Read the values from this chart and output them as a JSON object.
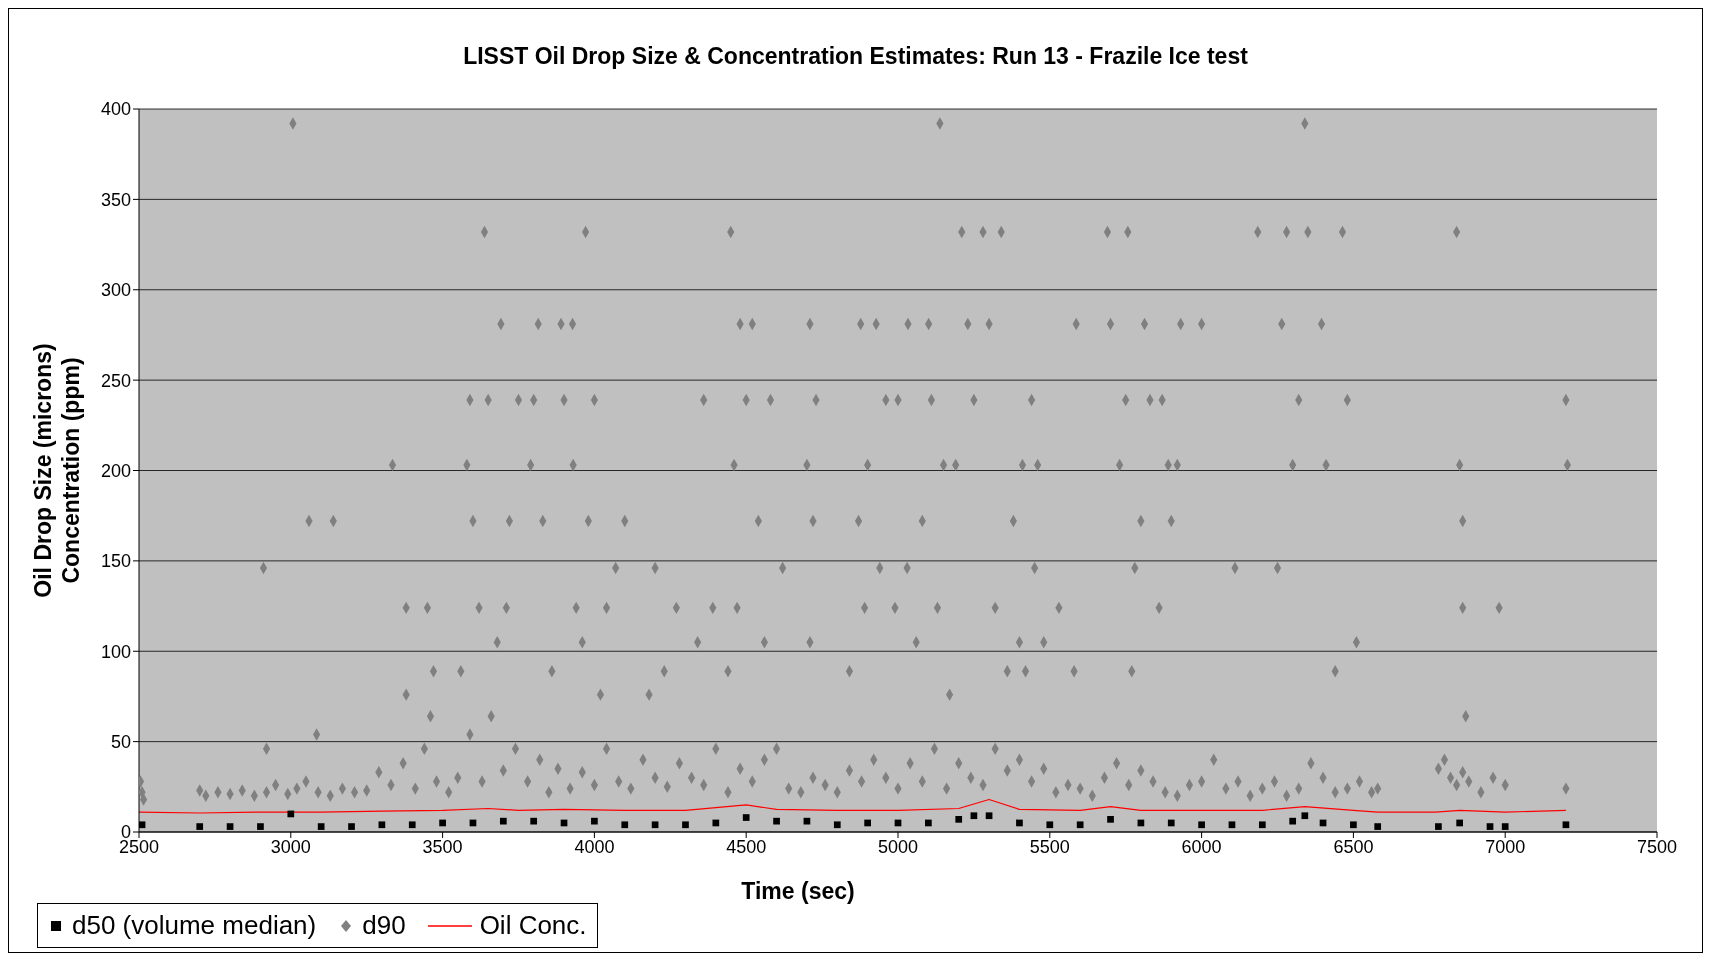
{
  "chart_data": {
    "type": "scatter",
    "title": "LISST  Oil Drop Size & Concentration Estimates: Run 13 - Frazile Ice test",
    "xlabel": "Time (sec)",
    "ylabel": "Oil Drop Size (microns)\nConcentration (ppm)",
    "xlim": [
      2500,
      7500
    ],
    "xticks": [
      2500,
      3000,
      3500,
      4000,
      4500,
      5000,
      5500,
      6000,
      6500,
      7000,
      7500
    ],
    "ylim": [
      0,
      400
    ],
    "yticks": [
      0,
      50,
      100,
      150,
      200,
      250,
      300,
      350,
      400
    ],
    "grid": "y",
    "legend": "bottom left",
    "series": [
      {
        "name": "d50 (volume median)",
        "marker": "square",
        "color": "#000000",
        "x": [
          2510,
          2700,
          2800,
          2900,
          3000,
          3100,
          3200,
          3300,
          3400,
          3500,
          3600,
          3700,
          3800,
          3900,
          4000,
          4100,
          4200,
          4300,
          4400,
          4500,
          4600,
          4700,
          4800,
          4900,
          5000,
          5100,
          5200,
          5250,
          5300,
          5400,
          5500,
          5600,
          5700,
          5800,
          5900,
          6000,
          6100,
          6200,
          6300,
          6340,
          6400,
          6500,
          6580,
          6780,
          6850,
          6950,
          7000,
          7200
        ],
        "values": [
          4,
          3,
          3,
          3,
          10,
          3,
          3,
          4,
          4,
          5,
          5,
          6,
          6,
          5,
          6,
          4,
          4,
          4,
          5,
          8,
          6,
          6,
          4,
          5,
          5,
          5,
          7,
          9,
          9,
          5,
          4,
          4,
          7,
          5,
          5,
          4,
          4,
          4,
          6,
          9,
          5,
          4,
          3,
          3,
          5,
          3,
          3,
          4
        ]
      },
      {
        "name": "d90",
        "marker": "diamond",
        "color": "#808080",
        "x": [
          2505,
          2510,
          2515,
          2700,
          2720,
          2760,
          2800,
          2840,
          2880,
          2920,
          2950,
          2990,
          3020,
          3050,
          3090,
          3130,
          3170,
          3210,
          3250,
          3290,
          3330,
          3370,
          3410,
          3440,
          3480,
          3520,
          3550,
          3590,
          3630,
          3660,
          3700,
          3740,
          3780,
          3820,
          3850,
          3880,
          3920,
          3960,
          4000,
          4040,
          4080,
          4120,
          4160,
          4200,
          4240,
          4280,
          4320,
          4360,
          4400,
          4440,
          4480,
          4520,
          4560,
          4600,
          4640,
          4680,
          4720,
          4760,
          4800,
          4840,
          4880,
          4920,
          4960,
          5000,
          5040,
          5080,
          5120,
          5160,
          5200,
          5240,
          5280,
          5320,
          5360,
          5400,
          5440,
          5480,
          5520,
          5560,
          5600,
          5640,
          5680,
          5720,
          5760,
          5800,
          5840,
          5880,
          5920,
          5960,
          6000,
          6040,
          6080,
          6120,
          6160,
          6200,
          6240,
          6280,
          6320,
          6360,
          6400,
          6440,
          6480,
          6520,
          6560,
          6580,
          6780,
          6800,
          6820,
          6840,
          6860,
          6880,
          6920,
          6960,
          7000,
          7200,
          2910,
          2920,
          3007,
          3060,
          3085,
          3140,
          3335,
          3380,
          3380,
          3450,
          3470,
          3460,
          3560,
          3580,
          3600,
          3620,
          3590,
          3638,
          3650,
          3680,
          3692,
          3720,
          3710,
          3750,
          3790,
          3800,
          3815,
          3830,
          3860,
          3890,
          3900,
          3928,
          3930,
          3940,
          3960,
          3971,
          3980,
          4000,
          4020,
          4040,
          4070,
          4100,
          4180,
          4200,
          4230,
          4270,
          4340,
          4360,
          4390,
          4440,
          4449,
          4460,
          4470,
          4480,
          4500,
          4520,
          4540,
          4560,
          4580,
          4620,
          4700,
          4710,
          4720,
          4710,
          4730,
          4840,
          4870,
          4877,
          4890,
          4900,
          4928,
          4940,
          4960,
          4990,
          5000,
          5030,
          5033,
          5060,
          5080,
          5101,
          5110,
          5130,
          5138,
          5150,
          5170,
          5190,
          5210,
          5230,
          5250,
          5280,
          5300,
          5320,
          5340,
          5360,
          5380,
          5400,
          5410,
          5420,
          5440,
          5450,
          5460,
          5480,
          5530,
          5587,
          5580,
          5690,
          5700,
          5730,
          5750,
          5757,
          5770,
          5780,
          5800,
          5812,
          5830,
          5860,
          5870,
          5890,
          5900,
          5920,
          5931,
          6000,
          6110,
          6185,
          6250,
          6264,
          6280,
          6300,
          6320,
          6340,
          6350,
          6395,
          6410,
          6440,
          6464,
          6480,
          6510,
          6840,
          6850,
          6860,
          6860,
          6870,
          6980,
          7200,
          7205
        ],
        "values": [
          28,
          22,
          18,
          23,
          20,
          22,
          21,
          23,
          20,
          22,
          26,
          21,
          24,
          28,
          22,
          20,
          24,
          22,
          23,
          33,
          26,
          38,
          24,
          46,
          28,
          22,
          30,
          54,
          28,
          64,
          34,
          46,
          28,
          40,
          22,
          35,
          24,
          33,
          26,
          46,
          28,
          24,
          40,
          30,
          25,
          38,
          30,
          26,
          46,
          22,
          35,
          28,
          40,
          46,
          24,
          22,
          30,
          26,
          22,
          34,
          28,
          40,
          30,
          24,
          38,
          28,
          46,
          24,
          38,
          30,
          26,
          46,
          34,
          40,
          28,
          35,
          22,
          26,
          24,
          20,
          30,
          38,
          26,
          34,
          28,
          22,
          20,
          26,
          28,
          40,
          24,
          28,
          20,
          24,
          28,
          20,
          24,
          38,
          30,
          22,
          24,
          28,
          22,
          24,
          35,
          40,
          30,
          26,
          33,
          28,
          22,
          30,
          26,
          24,
          146,
          46,
          392,
          172,
          54,
          172,
          203,
          124,
          76,
          124,
          89,
          64,
          89,
          203,
          172,
          124,
          239,
          332,
          239,
          105,
          281,
          172,
          124,
          239,
          203,
          239,
          281,
          172,
          89,
          281,
          239,
          281,
          203,
          124,
          105,
          332,
          172,
          239,
          76,
          124,
          146,
          172,
          76,
          146,
          89,
          124,
          105,
          239,
          124,
          89,
          332,
          203,
          124,
          281,
          239,
          281,
          172,
          105,
          239,
          146,
          203,
          281,
          172,
          105,
          239,
          89,
          172,
          281,
          124,
          203,
          281,
          146,
          239,
          124,
          239,
          146,
          281,
          105,
          172,
          281,
          239,
          124,
          392,
          203,
          76,
          203,
          332,
          281,
          239,
          332,
          281,
          124,
          332,
          89,
          172,
          105,
          203,
          89,
          239,
          146,
          203,
          105,
          124,
          281,
          89,
          332,
          281,
          203,
          239,
          332,
          89,
          146,
          172,
          281,
          239,
          124,
          239,
          203,
          172,
          203,
          281,
          281,
          146,
          332,
          146,
          281,
          332,
          203,
          239,
          392,
          332,
          281,
          203,
          89,
          332,
          239,
          105,
          332,
          203,
          172,
          124,
          64,
          124,
          239,
          203
        ]
      },
      {
        "name": "Oil Conc.",
        "type": "line",
        "marker": "none",
        "line_style": "solid",
        "color": "#ff0000",
        "x": [
          2500,
          2700,
          2900,
          3100,
          3300,
          3500,
          3650,
          3750,
          3900,
          4100,
          4300,
          4500,
          4600,
          4800,
          5000,
          5200,
          5300,
          5400,
          5600,
          5700,
          5800,
          6000,
          6200,
          6340,
          6500,
          6580,
          6770,
          6850,
          7000,
          7200
        ],
        "values": [
          11,
          10.5,
          11,
          11,
          11.5,
          12,
          13,
          12,
          12.5,
          12,
          12,
          15,
          12.5,
          12,
          12,
          13,
          18,
          12.5,
          12,
          14,
          12,
          12,
          12,
          14,
          12,
          11,
          11,
          12,
          11,
          12
        ]
      }
    ]
  }
}
